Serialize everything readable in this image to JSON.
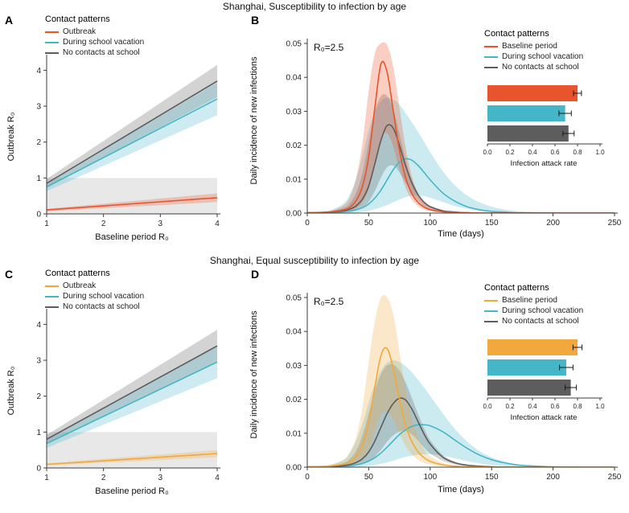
{
  "figure": {
    "title_top": "Shanghai, Susceptibility to infection by age",
    "title_bottom": "Shanghai, Equal susceptibility to infection by age"
  },
  "legend_title": "Contact patterns",
  "colors": {
    "orange": "#e8542c",
    "amber": "#f2a83c",
    "cyan": "#45b6c8",
    "gray": "#5d5d5d",
    "refband": "#e8e8e8",
    "axis": "#3c3c3c"
  },
  "panels": {
    "A": {
      "label": "A",
      "xlabel": "Baseline period R₀",
      "ylabel": "Outbreak R₀",
      "legend_items": [
        {
          "label": "Outbreak",
          "color": "orange"
        },
        {
          "label": "During school vacation",
          "color": "cyan"
        },
        {
          "label": "No contacts at school",
          "color": "gray"
        }
      ]
    },
    "B": {
      "label": "B",
      "annotation": "R₀=2.5",
      "xlabel": "Time (days)",
      "ylabel": "Daily incidence of new infections",
      "legend_items": [
        {
          "label": "Baseline period",
          "color": "orange"
        },
        {
          "label": "During school vacation",
          "color": "cyan"
        },
        {
          "label": "No contacts at school",
          "color": "gray"
        }
      ]
    },
    "C": {
      "label": "C",
      "xlabel": "Baseline period R₀",
      "ylabel": "Outbreak R₀",
      "legend_items": [
        {
          "label": "Outbreak",
          "color": "amber"
        },
        {
          "label": "During school vacation",
          "color": "cyan"
        },
        {
          "label": "No contacts at school",
          "color": "gray"
        }
      ]
    },
    "D": {
      "label": "D",
      "annotation": "R₀=2.5",
      "xlabel": "Time (days)",
      "ylabel": "Daily incidence of new infections",
      "legend_items": [
        {
          "label": "Baseline period",
          "color": "amber"
        },
        {
          "label": "During school vacation",
          "color": "cyan"
        },
        {
          "label": "No contacts at school",
          "color": "gray"
        }
      ]
    }
  },
  "chart_data": [
    {
      "id": "A",
      "type": "line",
      "title": "Shanghai, Susceptibility to infection by age",
      "xlabel": "Baseline period R₀",
      "ylabel": "Outbreak R₀",
      "xlim": [
        1,
        4
      ],
      "ylim": [
        0,
        4.3
      ],
      "x": [
        1,
        4
      ],
      "xticks": [
        1,
        2,
        3,
        4
      ],
      "yticks": [
        0,
        1,
        2,
        3,
        4
      ],
      "reference_band": {
        "y": [
          0,
          1
        ],
        "note": "epidemic threshold R0<1"
      },
      "band_opacity": 0.27,
      "series": [
        {
          "name": "No contacts at school",
          "color": "gray",
          "y": [
            0.85,
            3.7
          ],
          "lower": [
            0.73,
            3.25
          ],
          "upper": [
            0.97,
            4.15
          ]
        },
        {
          "name": "During school vacation",
          "color": "cyan",
          "y": [
            0.75,
            3.2
          ],
          "lower": [
            0.63,
            2.75
          ],
          "upper": [
            0.87,
            3.65
          ]
        },
        {
          "name": "Outbreak",
          "color": "orange",
          "y": [
            0.11,
            0.45
          ],
          "lower": [
            0.07,
            0.33
          ],
          "upper": [
            0.14,
            0.57
          ]
        }
      ]
    },
    {
      "id": "B",
      "type": "line",
      "annotation": "R₀=2.5",
      "xlabel": "Time (days)",
      "ylabel": "Daily incidence of new infections",
      "xlim": [
        0,
        250
      ],
      "ylim": [
        0,
        0.05
      ],
      "xticks": [
        0,
        50,
        100,
        150,
        200,
        250
      ],
      "yticks": [
        0,
        0.01,
        0.02,
        0.03,
        0.04,
        0.05
      ],
      "ytick_labels": [
        "0.00",
        "0.01",
        "0.02",
        "0.03",
        "0.04",
        "0.05"
      ],
      "band_opacity": 0.28,
      "x": [
        0,
        10,
        20,
        30,
        35,
        40,
        45,
        50,
        55,
        60,
        65,
        70,
        75,
        80,
        85,
        90,
        95,
        100,
        110,
        120,
        130,
        140,
        150,
        160,
        170,
        180,
        200,
        225,
        250
      ],
      "series": [
        {
          "name": "During school vacation",
          "color": "cyan",
          "y": [
            0.0001,
            0.0001,
            0.0002,
            0.0004,
            0.0006,
            0.001,
            0.0016,
            0.0027,
            0.0044,
            0.0068,
            0.0098,
            0.0128,
            0.015,
            0.016,
            0.0156,
            0.0141,
            0.012,
            0.0098,
            0.006,
            0.0035,
            0.0019,
            0.001,
            0.0005,
            0.0003,
            0.0001,
            0.0001,
            0,
            0,
            0
          ],
          "upper": [
            0.0001,
            0.0003,
            0.001,
            0.003,
            0.0058,
            0.0105,
            0.017,
            0.0245,
            0.03,
            0.033,
            0.034,
            0.0335,
            0.032,
            0.0295,
            0.0268,
            0.024,
            0.021,
            0.018,
            0.0125,
            0.0082,
            0.0052,
            0.0032,
            0.0019,
            0.0011,
            0.0006,
            0.0003,
            0.0001,
            0,
            0
          ],
          "lower": [
            0,
            0,
            0,
            0.0001,
            0.0001,
            0.0002,
            0.0004,
            0.0007,
            0.0011,
            0.0017,
            0.0024,
            0.0032,
            0.004,
            0.0047,
            0.0051,
            0.0052,
            0.005,
            0.0045,
            0.0033,
            0.0021,
            0.0013,
            0.0007,
            0.0004,
            0.0002,
            0.0001,
            0,
            0,
            0,
            0
          ]
        },
        {
          "name": "No contacts at school",
          "color": "gray",
          "y": [
            0.0001,
            0.0001,
            0.0003,
            0.0007,
            0.0012,
            0.0022,
            0.0042,
            0.008,
            0.0145,
            0.0215,
            0.0258,
            0.025,
            0.02,
            0.014,
            0.009,
            0.0055,
            0.0032,
            0.0019,
            0.0007,
            0.0003,
            0.0001,
            0,
            0,
            0,
            0,
            0,
            0,
            0,
            0
          ],
          "upper": [
            0.0001,
            0.0002,
            0.0006,
            0.0016,
            0.003,
            0.0062,
            0.012,
            0.021,
            0.03,
            0.0345,
            0.0345,
            0.0305,
            0.0235,
            0.0158,
            0.0098,
            0.0058,
            0.0034,
            0.002,
            0.0008,
            0.0003,
            0.0001,
            0,
            0,
            0,
            0,
            0,
            0,
            0,
            0
          ],
          "lower": [
            0,
            0,
            0.0001,
            0.0003,
            0.0005,
            0.0009,
            0.0017,
            0.0034,
            0.0065,
            0.0105,
            0.0135,
            0.014,
            0.012,
            0.009,
            0.006,
            0.0037,
            0.0021,
            0.0012,
            0.0004,
            0.0001,
            0,
            0,
            0,
            0,
            0,
            0,
            0,
            0,
            0
          ]
        },
        {
          "name": "Baseline period",
          "color": "orange",
          "y": [
            0.0001,
            0.0002,
            0.0004,
            0.001,
            0.0018,
            0.0038,
            0.008,
            0.0165,
            0.031,
            0.044,
            0.0415,
            0.03,
            0.0185,
            0.0105,
            0.0058,
            0.0032,
            0.0018,
            0.001,
            0.0004,
            0.0002,
            0.0001,
            0,
            0,
            0,
            0,
            0,
            0,
            0,
            0
          ],
          "upper": [
            0.0001,
            0.0003,
            0.0008,
            0.0024,
            0.005,
            0.0105,
            0.021,
            0.036,
            0.047,
            0.05,
            0.0495,
            0.043,
            0.031,
            0.0195,
            0.011,
            0.006,
            0.0033,
            0.0018,
            0.0007,
            0.0003,
            0.0001,
            0,
            0,
            0,
            0,
            0,
            0,
            0,
            0
          ],
          "lower": [
            0,
            0.0001,
            0.0002,
            0.0004,
            0.0007,
            0.0015,
            0.0033,
            0.007,
            0.014,
            0.022,
            0.0235,
            0.0195,
            0.013,
            0.0075,
            0.004,
            0.0021,
            0.0011,
            0.0006,
            0.0002,
            0.0001,
            0,
            0,
            0,
            0,
            0,
            0,
            0,
            0,
            0
          ]
        }
      ]
    },
    {
      "id": "B_inset",
      "type": "bar",
      "orientation": "horizontal",
      "xlabel": "Infection attack rate",
      "xlim": [
        0,
        1
      ],
      "xticks": [
        0,
        0.2,
        0.4,
        0.6,
        0.8,
        1
      ],
      "xtick_labels": [
        "0.0",
        "0.2",
        "0.4",
        "0.6",
        "0.8",
        "1.0"
      ],
      "bars": [
        {
          "name": "Baseline period",
          "color": "orange",
          "value": 0.8,
          "err": 0.035
        },
        {
          "name": "During school vacation",
          "color": "cyan",
          "value": 0.69,
          "err": 0.055
        },
        {
          "name": "No contacts at school",
          "color": "gray",
          "value": 0.72,
          "err": 0.05
        }
      ]
    },
    {
      "id": "C",
      "type": "line",
      "title": "Shanghai, Equal susceptibility to infection by age",
      "xlabel": "Baseline period R₀",
      "ylabel": "Outbreak R₀",
      "xlim": [
        1,
        4
      ],
      "ylim": [
        0,
        4.3
      ],
      "x": [
        1,
        4
      ],
      "xticks": [
        1,
        2,
        3,
        4
      ],
      "yticks": [
        0,
        1,
        2,
        3,
        4
      ],
      "reference_band": {
        "y": [
          0,
          1
        ],
        "note": "epidemic threshold R0<1"
      },
      "band_opacity": 0.27,
      "series": [
        {
          "name": "No contacts at school",
          "color": "gray",
          "y": [
            0.8,
            3.4
          ],
          "lower": [
            0.68,
            2.95
          ],
          "upper": [
            0.92,
            3.85
          ]
        },
        {
          "name": "During school vacation",
          "color": "cyan",
          "y": [
            0.68,
            2.95
          ],
          "lower": [
            0.56,
            2.5
          ],
          "upper": [
            0.8,
            3.4
          ]
        },
        {
          "name": "Outbreak",
          "color": "amber",
          "y": [
            0.1,
            0.4
          ],
          "lower": [
            0.07,
            0.3
          ],
          "upper": [
            0.13,
            0.5
          ]
        }
      ]
    },
    {
      "id": "D",
      "type": "line",
      "annotation": "R₀=2.5",
      "xlabel": "Time (days)",
      "ylabel": "Daily incidence of new infections",
      "xlim": [
        0,
        250
      ],
      "ylim": [
        0,
        0.05
      ],
      "xticks": [
        0,
        50,
        100,
        150,
        200,
        250
      ],
      "yticks": [
        0,
        0.01,
        0.02,
        0.03,
        0.04,
        0.05
      ],
      "ytick_labels": [
        "0.00",
        "0.01",
        "0.02",
        "0.03",
        "0.04",
        "0.05"
      ],
      "band_opacity": 0.28,
      "x": [
        0,
        10,
        20,
        30,
        35,
        40,
        45,
        50,
        55,
        60,
        65,
        70,
        75,
        80,
        85,
        90,
        95,
        100,
        110,
        120,
        130,
        140,
        150,
        160,
        170,
        180,
        200,
        225,
        250
      ],
      "series": [
        {
          "name": "During school vacation",
          "color": "cyan",
          "y": [
            0.0001,
            0.0001,
            0.0001,
            0.0003,
            0.0004,
            0.0007,
            0.0011,
            0.0018,
            0.0028,
            0.0042,
            0.0059,
            0.0078,
            0.0096,
            0.011,
            0.012,
            0.0125,
            0.0125,
            0.0122,
            0.0105,
            0.008,
            0.0056,
            0.0036,
            0.0022,
            0.0013,
            0.0007,
            0.0004,
            0.0001,
            0,
            0
          ],
          "upper": [
            0.0001,
            0.0002,
            0.0008,
            0.0023,
            0.0045,
            0.008,
            0.013,
            0.019,
            0.0245,
            0.0285,
            0.0308,
            0.0315,
            0.031,
            0.0298,
            0.028,
            0.0258,
            0.0235,
            0.021,
            0.016,
            0.0113,
            0.0076,
            0.0048,
            0.0029,
            0.0017,
            0.0009,
            0.0005,
            0.0002,
            0,
            0
          ],
          "lower": [
            0,
            0,
            0,
            0,
            0.0001,
            0.0001,
            0.0002,
            0.0004,
            0.0006,
            0.001,
            0.0014,
            0.0019,
            0.0025,
            0.003,
            0.0034,
            0.0037,
            0.0038,
            0.0038,
            0.0034,
            0.0026,
            0.0018,
            0.0011,
            0.0006,
            0.0003,
            0.0001,
            0,
            0,
            0,
            0
          ]
        },
        {
          "name": "No contacts at school",
          "color": "gray",
          "y": [
            0.0001,
            0.0001,
            0.0002,
            0.0005,
            0.0008,
            0.0014,
            0.0025,
            0.0045,
            0.0077,
            0.0118,
            0.0158,
            0.0188,
            0.0203,
            0.0198,
            0.0172,
            0.0135,
            0.0098,
            0.0068,
            0.003,
            0.0013,
            0.0006,
            0.0003,
            0.0001,
            0,
            0,
            0,
            0,
            0,
            0
          ],
          "upper": [
            0.0001,
            0.0002,
            0.0005,
            0.0013,
            0.0025,
            0.005,
            0.0095,
            0.0158,
            0.0225,
            0.0275,
            0.03,
            0.0302,
            0.0285,
            0.025,
            0.0205,
            0.0158,
            0.0115,
            0.008,
            0.0037,
            0.0016,
            0.0007,
            0.0003,
            0.0001,
            0,
            0,
            0,
            0,
            0,
            0
          ],
          "lower": [
            0,
            0,
            0.0001,
            0.0002,
            0.0003,
            0.0005,
            0.0009,
            0.0017,
            0.0031,
            0.0052,
            0.0075,
            0.0094,
            0.0105,
            0.0106,
            0.0097,
            0.0079,
            0.0058,
            0.0041,
            0.0019,
            0.0008,
            0.0003,
            0.0001,
            0,
            0,
            0,
            0,
            0,
            0,
            0
          ]
        },
        {
          "name": "Baseline period",
          "color": "amber",
          "y": [
            0.0001,
            0.0002,
            0.0004,
            0.0009,
            0.0016,
            0.0032,
            0.0065,
            0.013,
            0.0235,
            0.033,
            0.035,
            0.029,
            0.02,
            0.0125,
            0.0076,
            0.0046,
            0.0028,
            0.0017,
            0.0007,
            0.0003,
            0.0001,
            0.0001,
            0,
            0,
            0,
            0,
            0,
            0,
            0
          ],
          "upper": [
            0.0001,
            0.0003,
            0.0008,
            0.0022,
            0.0045,
            0.0092,
            0.018,
            0.031,
            0.043,
            0.05,
            0.05,
            0.045,
            0.034,
            0.023,
            0.0145,
            0.0088,
            0.0053,
            0.0032,
            0.0013,
            0.0005,
            0.0002,
            0.0001,
            0,
            0,
            0,
            0,
            0,
            0,
            0
          ],
          "lower": [
            0,
            0.0001,
            0.0001,
            0.0003,
            0.0006,
            0.0012,
            0.0026,
            0.0055,
            0.0105,
            0.0155,
            0.0165,
            0.014,
            0.01,
            0.0063,
            0.0038,
            0.0022,
            0.0013,
            0.0008,
            0.0003,
            0.0001,
            0,
            0,
            0,
            0,
            0,
            0,
            0,
            0,
            0
          ]
        }
      ]
    },
    {
      "id": "D_inset",
      "type": "bar",
      "orientation": "horizontal",
      "xlabel": "Infection attack rate",
      "xlim": [
        0,
        1
      ],
      "xticks": [
        0,
        0.2,
        0.4,
        0.6,
        0.8,
        1
      ],
      "xtick_labels": [
        "0.0",
        "0.2",
        "0.4",
        "0.6",
        "0.8",
        "1.0"
      ],
      "bars": [
        {
          "name": "Baseline period",
          "color": "amber",
          "value": 0.8,
          "err": 0.04
        },
        {
          "name": "During school vacation",
          "color": "cyan",
          "value": 0.7,
          "err": 0.06
        },
        {
          "name": "No contacts at school",
          "color": "gray",
          "value": 0.74,
          "err": 0.05
        }
      ]
    }
  ]
}
